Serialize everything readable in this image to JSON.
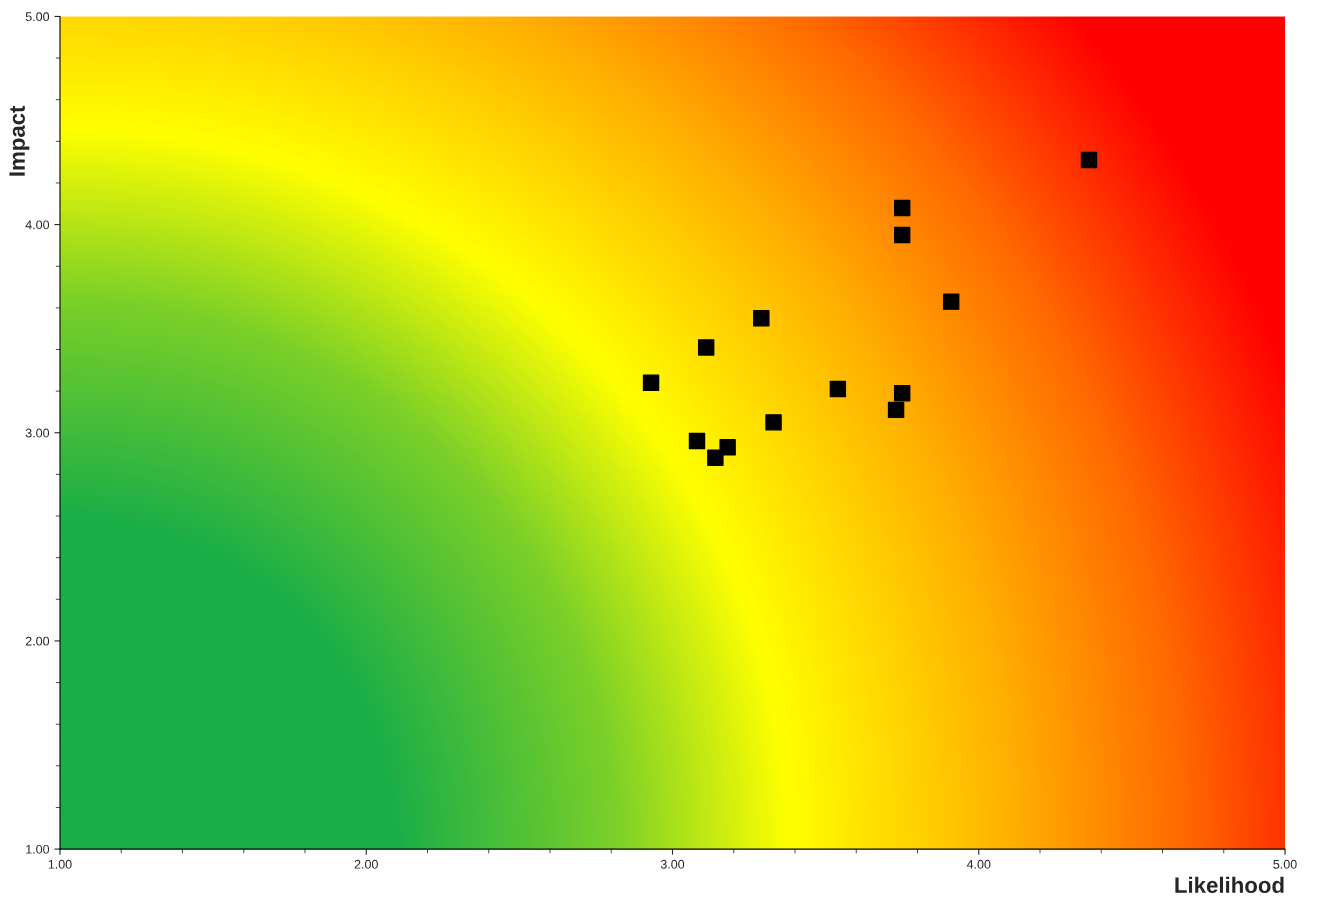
{
  "chart_data": {
    "type": "scatter",
    "xlabel": "Likelihood",
    "ylabel": "Impact",
    "x": [
      4.36,
      3.75,
      3.75,
      3.91,
      3.29,
      3.11,
      2.93,
      3.54,
      3.75,
      3.73,
      3.33,
      3.08,
      3.18,
      3.14
    ],
    "series": [
      {
        "color": "#000000",
        "values": [
          4.31,
          4.08,
          3.95,
          3.63,
          3.55,
          3.41,
          3.24,
          3.21,
          3.19,
          3.11,
          3.05,
          2.96,
          2.93,
          2.88
        ]
      }
    ],
    "marker": "square",
    "grid": false,
    "xlim": [
      1,
      5
    ],
    "ylim": [
      1,
      5
    ],
    "xticks": [
      {
        "value": 1,
        "label": "1.00"
      },
      {
        "value": 2,
        "label": "2.00"
      },
      {
        "value": 3,
        "label": "3.00"
      },
      {
        "value": 4,
        "label": "4.00"
      },
      {
        "value": 5,
        "label": "5.00"
      }
    ],
    "yticks": [
      {
        "value": 1,
        "label": "1.00"
      },
      {
        "value": 2,
        "label": "2.00"
      },
      {
        "value": 3,
        "label": "3.00"
      },
      {
        "value": 4,
        "label": "4.00"
      },
      {
        "value": 5,
        "label": "5.00"
      }
    ]
  }
}
